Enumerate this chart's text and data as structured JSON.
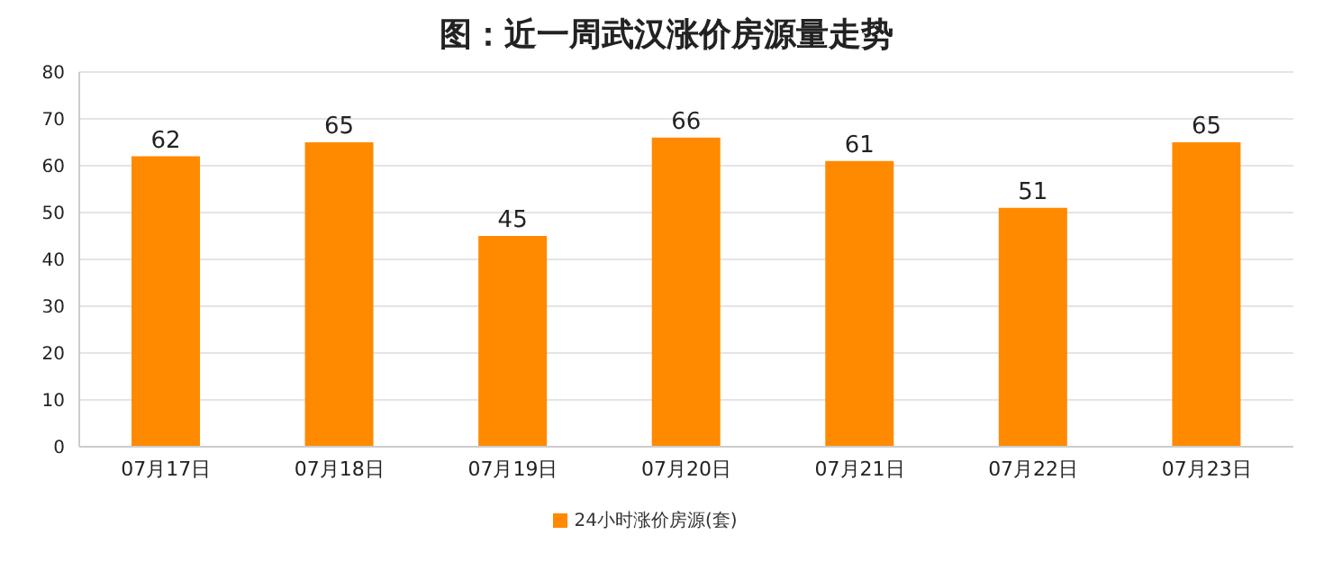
{
  "chart_data": {
    "type": "bar",
    "title": "图：近一周武汉涨价房源量走势",
    "categories": [
      "07月17日",
      "07月18日",
      "07月19日",
      "07月20日",
      "07月21日",
      "07月22日",
      "07月23日"
    ],
    "series": [
      {
        "name": "24小时涨价房源(套)",
        "color": "#ff8a00",
        "values": [
          62,
          65,
          45,
          66,
          61,
          51,
          65
        ]
      }
    ],
    "ylim": [
      0,
      80
    ],
    "yticks": [
      0,
      10,
      20,
      30,
      40,
      50,
      60,
      70,
      80
    ],
    "grid": "y",
    "legend": "bottom",
    "data_labels": true
  }
}
